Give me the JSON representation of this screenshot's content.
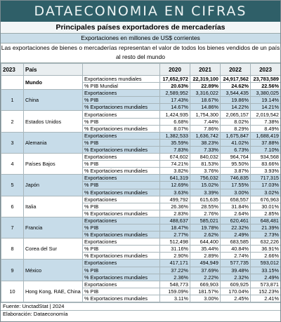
{
  "header": {
    "title": "DATAECONOMIA EN CIFRAS",
    "subtitle": "Principales países exportadores de mercaderías",
    "units": "Exportaciones en millones de US$ corrientes",
    "description": "Las exportaciones de bienes o mercaderías representan el valor de todos los bienes vendidos de un país al resto del mundo"
  },
  "table": {
    "columns": {
      "rank": "2023",
      "country": "País",
      "years": [
        "2020",
        "2021",
        "2022",
        "2023"
      ]
    },
    "world": {
      "name": "Mundo",
      "indicators": [
        "Exportaciones mundiales",
        "% PIB Mundial"
      ],
      "values": [
        [
          "17,652,972",
          "22,319,100",
          "24,917,562",
          "23,783,589"
        ],
        [
          "20.63%",
          "22.89%",
          "24.62%",
          "22.56%"
        ]
      ]
    },
    "rows": [
      {
        "rank": "1",
        "country": "China",
        "indicators": [
          "Exportaciones",
          "% PIB",
          "% Exportaciones mundiales"
        ],
        "values": [
          [
            "2,589,952",
            "3,316,022",
            "3,544,435",
            "3,380,025"
          ],
          [
            "17.43%",
            "18.67%",
            "19.86%",
            "19.14%"
          ],
          [
            "14.67%",
            "14.86%",
            "14.22%",
            "14.21%"
          ]
        ]
      },
      {
        "rank": "2",
        "country": "Estados Unidos",
        "indicators": [
          "Exportaciones",
          "% PIB",
          "% Exportaciones mundiales"
        ],
        "values": [
          [
            "1,424,935",
            "1,754,300",
            "2,065,157",
            "2,019,542"
          ],
          [
            "6.68%",
            "7.44%",
            "8.02%",
            "7.38%"
          ],
          [
            "8.07%",
            "7.86%",
            "8.29%",
            "8.49%"
          ]
        ]
      },
      {
        "rank": "3",
        "country": "Alemania",
        "indicators": [
          "Exportaciones",
          "% PIB",
          "% Exportaciones mundiales"
        ],
        "values": [
          [
            "1,382,533",
            "1,636,742",
            "1,675,847",
            "1,688,419"
          ],
          [
            "35.59%",
            "38.23%",
            "41.02%",
            "37.88%"
          ],
          [
            "7.83%",
            "7.33%",
            "6.73%",
            "7.10%"
          ]
        ]
      },
      {
        "rank": "4",
        "country": "Países Bajos",
        "indicators": [
          "Exportaciones",
          "% PIB",
          "% Exportaciones mundiales"
        ],
        "values": [
          [
            "674,602",
            "840,032",
            "964,764",
            "934,568"
          ],
          [
            "74.21%",
            "81.53%",
            "95.50%",
            "83.66%"
          ],
          [
            "3.82%",
            "3.76%",
            "3.87%",
            "3.93%"
          ]
        ]
      },
      {
        "rank": "5",
        "country": "Japón",
        "indicators": [
          "Exportaciones",
          "% PIB",
          "% Exportaciones mundiales"
        ],
        "values": [
          [
            "641,319",
            "756,032",
            "746,835",
            "717,315"
          ],
          [
            "12.69%",
            "15.02%",
            "17.55%",
            "17.03%"
          ],
          [
            "3.63%",
            "3.39%",
            "3.00%",
            "3.02%"
          ]
        ]
      },
      {
        "rank": "6",
        "country": "Italia",
        "indicators": [
          "Exportaciones",
          "% PIB",
          "% Exportaciones mundiales"
        ],
        "values": [
          [
            "499,792",
            "615,635",
            "658,557",
            "676,963"
          ],
          [
            "26.36%",
            "28.55%",
            "31.84%",
            "30.01%"
          ],
          [
            "2.83%",
            "2.76%",
            "2.64%",
            "2.85%"
          ]
        ]
      },
      {
        "rank": "7",
        "country": "Francia",
        "indicators": [
          "Exportaciones",
          "% PIB",
          "% Exportaciones mundiales"
        ],
        "values": [
          [
            "488,637",
            "585,021",
            "620,461",
            "648,481"
          ],
          [
            "18.47%",
            "19.78%",
            "22.32%",
            "21.39%"
          ],
          [
            "2.77%",
            "2.62%",
            "2.49%",
            "2.73%"
          ]
        ]
      },
      {
        "rank": "8",
        "country": "Corea del Sur",
        "indicators": [
          "Exportaciones",
          "% PIB",
          "% Exportaciones mundiales"
        ],
        "values": [
          [
            "512,498",
            "644,400",
            "683,585",
            "632,226"
          ],
          [
            "31.16%",
            "35.44%",
            "40.84%",
            "36.91%"
          ],
          [
            "2.90%",
            "2.89%",
            "2.74%",
            "2.66%"
          ]
        ]
      },
      {
        "rank": "9",
        "country": "México",
        "indicators": [
          "Exportaciones",
          "% PIB",
          "% Exportaciones mundiales"
        ],
        "values": [
          [
            "417,171",
            "494,949",
            "577,735",
            "593,012"
          ],
          [
            "37.22%",
            "37.69%",
            "39.48%",
            "33.15%"
          ],
          [
            "2.36%",
            "2.22%",
            "2.32%",
            "2.49%"
          ]
        ]
      },
      {
        "rank": "10",
        "country": "Hong Kong, RAE, China",
        "indicators": [
          "Exportaciones",
          "% PIB",
          "% Exportaciones mundiales"
        ],
        "values": [
          [
            "548,773",
            "669,903",
            "609,925",
            "573,871"
          ],
          [
            "159.09%",
            "181.57%",
            "170.04%",
            "152.23%"
          ],
          [
            "3.11%",
            "3.00%",
            "2.45%",
            "2.41%"
          ]
        ]
      }
    ]
  },
  "footer": {
    "source": "Fuente: UnctadStat | 2024",
    "credit": "Elaboración: Dataeconomía"
  }
}
